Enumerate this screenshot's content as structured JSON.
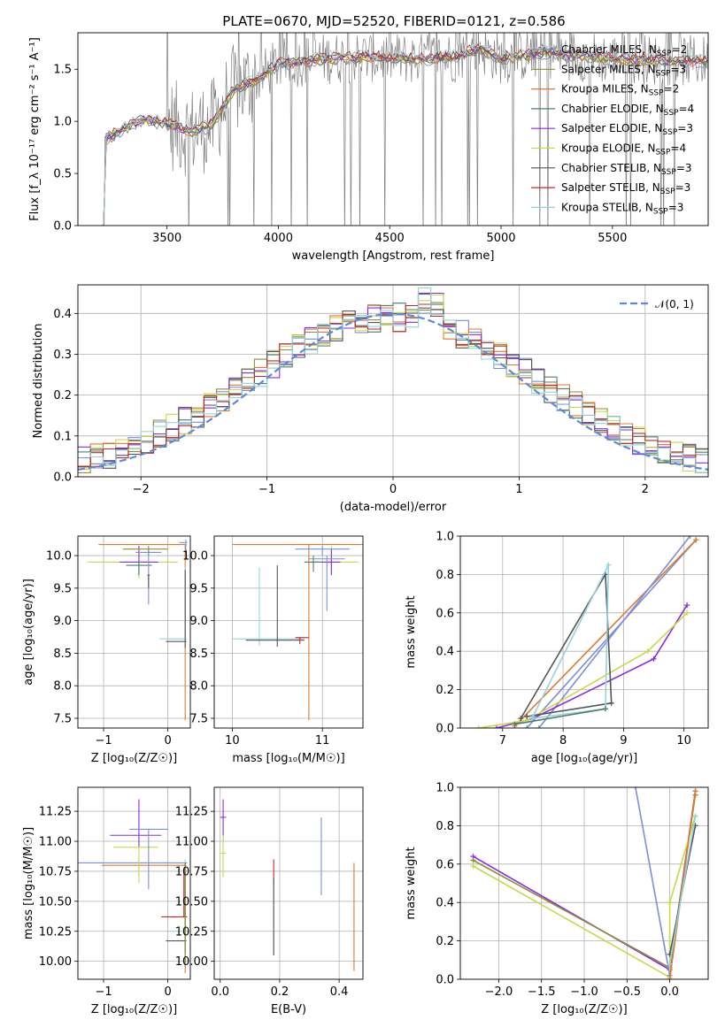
{
  "figure": {
    "title": "PLATE=0670, MJD=52520, FIBERID=0121, z=0.586"
  },
  "series_colors": [
    "#7b8fd6",
    "#8e8e3a",
    "#e07a2e",
    "#4d7f6a",
    "#8a2be2",
    "#c7d94a",
    "#555555",
    "#c62828",
    "#93d3de"
  ],
  "chart_data": [
    {
      "id": "spectrum",
      "type": "line",
      "xlabel": "wavelength [Angstrom, rest frame]",
      "ylabel": "Flux [f_λ 10⁻¹⁷ erg cm⁻² s⁻¹ A⁻¹]",
      "xlim": [
        3100,
        5930
      ],
      "ylim": [
        0,
        1.85
      ],
      "xticks": [
        3500,
        4000,
        4500,
        5000,
        5500
      ],
      "yticks": [
        0.0,
        0.5,
        1.0,
        1.5
      ],
      "legend_position": "top-right",
      "legend": [
        {
          "label": "Chabrier MILES, N",
          "sub": "SSP",
          "suffix": "=2",
          "color": "#7b8fd6"
        },
        {
          "label": "Salpeter MILES, N",
          "sub": "SSP",
          "suffix": "=3",
          "color": "#8e8e3a"
        },
        {
          "label": "Kroupa MILES, N",
          "sub": "SSP",
          "suffix": "=2",
          "color": "#e07a2e"
        },
        {
          "label": "Chabrier ELODIE, N",
          "sub": "SSP",
          "suffix": "=4",
          "color": "#4d7f6a"
        },
        {
          "label": "Salpeter ELODIE, N",
          "sub": "SSP",
          "suffix": "=3",
          "color": "#8a2be2"
        },
        {
          "label": "Kroupa ELODIE, N",
          "sub": "SSP",
          "suffix": "=4",
          "color": "#c7d94a"
        },
        {
          "label": "Chabrier STELIB, N",
          "sub": "SSP",
          "suffix": "=3",
          "color": "#555555"
        },
        {
          "label": "Salpeter STELIB, N",
          "sub": "SSP",
          "suffix": "=3",
          "color": "#c62828"
        },
        {
          "label": "Kroupa STELIB, N",
          "sub": "SSP",
          "suffix": "=3",
          "color": "#93d3de"
        }
      ],
      "data_color": "#808080",
      "model_trend": [
        [
          3210,
          0.0
        ],
        [
          3220,
          0.82
        ],
        [
          3300,
          0.93
        ],
        [
          3400,
          1.02
        ],
        [
          3500,
          0.98
        ],
        [
          3600,
          0.9
        ],
        [
          3700,
          0.96
        ],
        [
          3800,
          1.3
        ],
        [
          3900,
          1.4
        ],
        [
          4000,
          1.55
        ],
        [
          4200,
          1.6
        ],
        [
          4400,
          1.62
        ],
        [
          4600,
          1.6
        ],
        [
          4800,
          1.62
        ],
        [
          4900,
          1.7
        ],
        [
          5000,
          1.6
        ],
        [
          5200,
          1.66
        ],
        [
          5500,
          1.6
        ],
        [
          5800,
          1.58
        ]
      ]
    },
    {
      "id": "residuals",
      "type": "line",
      "xlabel": "(data-model)/error",
      "ylabel": "Normed distribution",
      "xlim": [
        -2.5,
        2.5
      ],
      "ylim": [
        0,
        0.47
      ],
      "xticks": [
        -2,
        -1,
        0,
        1,
        2
      ],
      "yticks": [
        0.0,
        0.1,
        0.2,
        0.3,
        0.4
      ],
      "legend_position": "top-right",
      "legend": [
        {
          "label": "𝒩(0, 1)",
          "color": "#5b8bd6",
          "style": "dashed"
        }
      ]
    },
    {
      "id": "age_vs_z",
      "type": "scatter",
      "xlabel": "Z [log₁₀(Z/Z☉)]",
      "ylabel": "age  [log₁₀(age/yr)]",
      "xlim": [
        -1.4,
        0.35
      ],
      "ylim": [
        7.35,
        10.3
      ],
      "xticks": [
        -1,
        0
      ],
      "yticks": [
        7.5,
        8.0,
        8.5,
        9.0,
        9.5,
        10.0
      ]
    },
    {
      "id": "age_vs_mass",
      "type": "scatter",
      "xlabel": "mass [log₁₀(M/M☉)]",
      "ylabel": "",
      "xlim": [
        9.8,
        11.45
      ],
      "ylim": [
        7.35,
        10.3
      ],
      "xticks": [
        10,
        11
      ],
      "yticks": [
        7.5,
        8.0,
        8.5,
        9.0,
        9.5,
        10.0
      ]
    },
    {
      "id": "mass_weight_vs_age",
      "type": "line",
      "xlabel": "age  [log₁₀(age/yr)]",
      "ylabel": "mass weight",
      "xlim": [
        6.3,
        10.4
      ],
      "ylim": [
        0,
        1.0
      ],
      "xticks": [
        7,
        8,
        9,
        10
      ],
      "yticks": [
        0.0,
        0.2,
        0.4,
        0.6,
        0.8,
        1.0
      ]
    },
    {
      "id": "mass_vs_z",
      "type": "scatter",
      "xlabel": "Z [log₁₀(Z/Z☉)]",
      "ylabel": "mass [log₁₀(M/M☉)]",
      "xlim": [
        -1.4,
        0.35
      ],
      "ylim": [
        9.85,
        11.45
      ],
      "xticks": [
        -1,
        0
      ],
      "yticks": [
        10.0,
        10.25,
        10.5,
        10.75,
        11.0,
        11.25
      ]
    },
    {
      "id": "mass_vs_ebv",
      "type": "scatter",
      "xlabel": "E(B-V)",
      "ylabel": "",
      "xlim": [
        -0.02,
        0.48
      ],
      "ylim": [
        9.85,
        11.45
      ],
      "xticks": [
        0.0,
        0.2,
        0.4
      ],
      "yticks": [
        10.0,
        10.25,
        10.5,
        10.75,
        11.0,
        11.25
      ]
    },
    {
      "id": "mass_weight_vs_z",
      "type": "line",
      "xlabel": "Z [log₁₀(Z/Z☉)]",
      "ylabel": "mass weight",
      "xlim": [
        -2.45,
        0.45
      ],
      "ylim": [
        0,
        1.0
      ],
      "xticks": [
        -2.0,
        -1.5,
        -1.0,
        -0.5,
        0.0
      ],
      "yticks": [
        0.0,
        0.2,
        0.4,
        0.6,
        0.8,
        1.0
      ]
    }
  ]
}
